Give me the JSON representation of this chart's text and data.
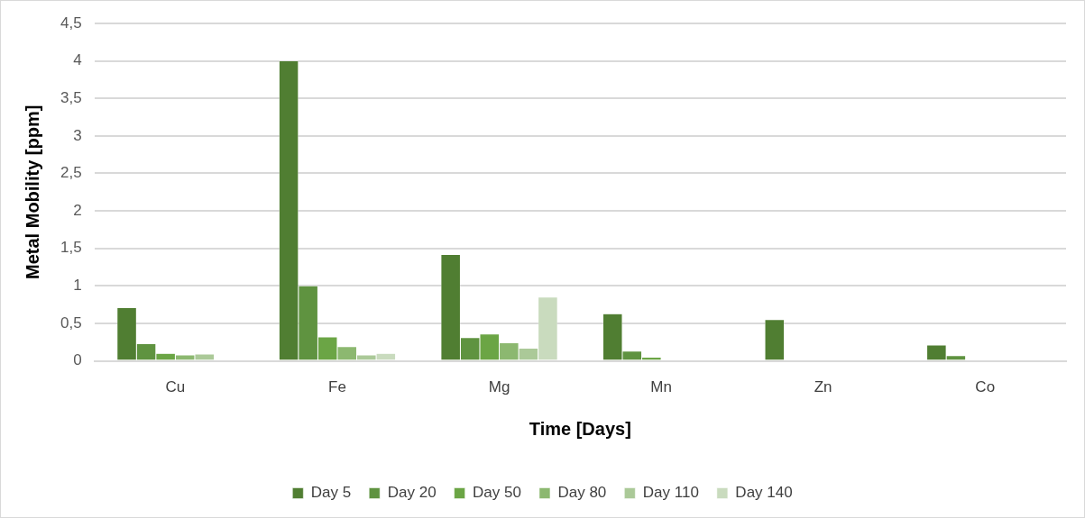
{
  "chart_data": {
    "type": "bar",
    "xlabel": "Time [Days]",
    "ylabel": "Metal Mobility [ppm]",
    "categories": [
      "Cu",
      "Fe",
      "Mg",
      "Mn",
      "Zn",
      "Co"
    ],
    "series": [
      {
        "name": "Day 5",
        "color": "#507e32",
        "values": [
          0.71,
          4.0,
          1.42,
          0.63,
          0.55,
          0.21
        ]
      },
      {
        "name": "Day 20",
        "color": "#5f9340",
        "values": [
          0.23,
          1.0,
          0.31,
          0.13,
          0,
          0.07
        ]
      },
      {
        "name": "Day 50",
        "color": "#6ba545",
        "values": [
          0.1,
          0.32,
          0.36,
          0.05,
          0,
          0
        ]
      },
      {
        "name": "Day 80",
        "color": "#8cb870",
        "values": [
          0.08,
          0.19,
          0.24,
          0,
          0,
          0
        ]
      },
      {
        "name": "Day 110",
        "color": "#abc998",
        "values": [
          0.09,
          0.08,
          0.17,
          0,
          0,
          0
        ]
      },
      {
        "name": "Day 140",
        "color": "#c9dbbe",
        "values": [
          0,
          0.1,
          0.85,
          0,
          0,
          0
        ]
      }
    ],
    "ylim": [
      0,
      4.5
    ],
    "yticks": [
      0,
      {
        "value": 0.5,
        "label": "0,5"
      },
      1,
      {
        "value": 1.5,
        "label": "1,5"
      },
      2,
      {
        "value": 2.5,
        "label": "2,5"
      },
      3,
      {
        "value": 3.5,
        "label": "3,5"
      },
      4,
      {
        "value": 4.5,
        "label": "4,5"
      }
    ],
    "grid": "y",
    "legend": "bottom"
  }
}
